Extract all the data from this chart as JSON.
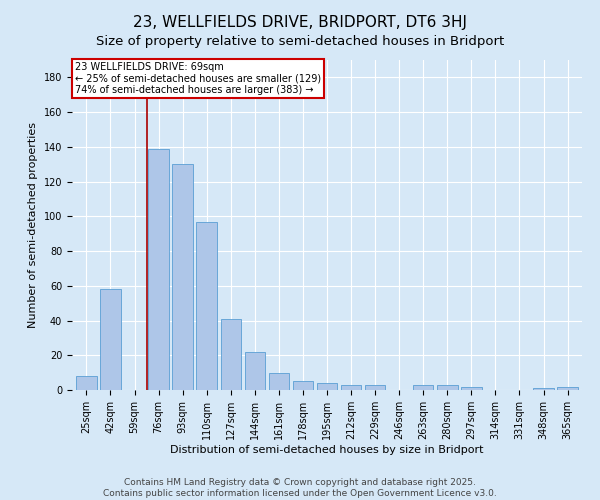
{
  "title": "23, WELLFIELDS DRIVE, BRIDPORT, DT6 3HJ",
  "subtitle": "Size of property relative to semi-detached houses in Bridport",
  "xlabel": "Distribution of semi-detached houses by size in Bridport",
  "ylabel": "Number of semi-detached properties",
  "categories": [
    "25sqm",
    "42sqm",
    "59sqm",
    "76sqm",
    "93sqm",
    "110sqm",
    "127sqm",
    "144sqm",
    "161sqm",
    "178sqm",
    "195sqm",
    "212sqm",
    "229sqm",
    "246sqm",
    "263sqm",
    "280sqm",
    "297sqm",
    "314sqm",
    "331sqm",
    "348sqm",
    "365sqm"
  ],
  "values": [
    8,
    58,
    0,
    139,
    130,
    97,
    41,
    22,
    10,
    5,
    4,
    3,
    3,
    0,
    3,
    3,
    2,
    0,
    0,
    1,
    2
  ],
  "bar_color": "#aec6e8",
  "bar_edge_color": "#5a9fd4",
  "red_line_x": 2.5,
  "annotation_title": "23 WELLFIELDS DRIVE: 69sqm",
  "annotation_line1": "← 25% of semi-detached houses are smaller (129)",
  "annotation_line2": "74% of semi-detached houses are larger (383) →",
  "annotation_box_color": "#ffffff",
  "annotation_box_edge_color": "#cc0000",
  "footer_line1": "Contains HM Land Registry data © Crown copyright and database right 2025.",
  "footer_line2": "Contains public sector information licensed under the Open Government Licence v3.0.",
  "ylim": [
    0,
    190
  ],
  "yticks": [
    0,
    20,
    40,
    60,
    80,
    100,
    120,
    140,
    160,
    180
  ],
  "background_color": "#d6e8f7",
  "plot_bg_color": "#d6e8f7",
  "title_fontsize": 11,
  "subtitle_fontsize": 9.5,
  "axis_label_fontsize": 8,
  "tick_fontsize": 7,
  "annotation_fontsize": 7,
  "footer_fontsize": 6.5
}
